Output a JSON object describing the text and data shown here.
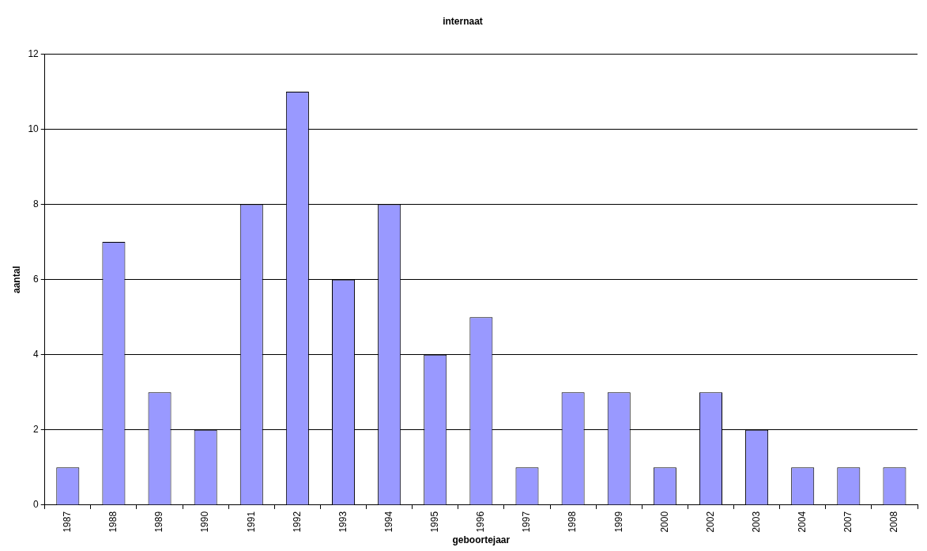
{
  "chart_data": {
    "type": "bar",
    "title": "internaat",
    "xlabel": "geboortejaar",
    "ylabel": "aantal",
    "categories": [
      "1987",
      "1988",
      "1989",
      "1990",
      "1991",
      "1992",
      "1993",
      "1994",
      "1995",
      "1996",
      "1997",
      "1998",
      "1999",
      "2000",
      "2002",
      "2003",
      "2004",
      "2007",
      "2008"
    ],
    "values": [
      1,
      7,
      3,
      2,
      8,
      11,
      6,
      8,
      4,
      5,
      1,
      3,
      3,
      1,
      3,
      2,
      1,
      1,
      1
    ],
    "color": "#9999ff",
    "ylim": [
      0,
      12
    ],
    "yticks": [
      0,
      2,
      4,
      6,
      8,
      10,
      12
    ],
    "grid": "y",
    "legend": false
  }
}
